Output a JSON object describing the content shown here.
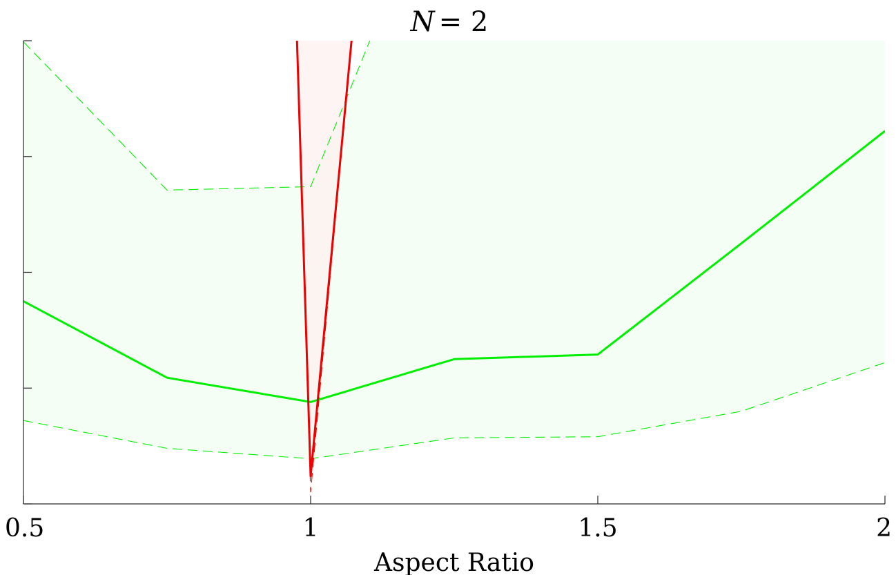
{
  "chart_data": {
    "type": "line",
    "title": "N = 2",
    "title_var": "N",
    "title_eq": "= 2",
    "xlabel": "Aspect Ratio",
    "ylabel": "",
    "xlim": [
      0.5,
      2
    ],
    "ylim": [
      0,
      4
    ],
    "x_ticks": [
      0.5,
      1,
      1.5,
      2
    ],
    "x_tick_labels": [
      "0.5",
      "1",
      "1.5",
      "2"
    ],
    "y_ticks": [
      0,
      1,
      2,
      3,
      4
    ],
    "y_tick_labels": [
      "",
      "",
      "",
      "",
      ""
    ],
    "grid": false,
    "legend": "none",
    "series": [
      {
        "color": "#00ee00",
        "band_fill": "#f0fdf0",
        "x": [
          0.5,
          0.75,
          1.0,
          1.25,
          1.5,
          1.75,
          2.0
        ],
        "mean": [
          1.75,
          1.09,
          0.88,
          1.25,
          1.29,
          2.25,
          3.22
        ],
        "upper": [
          3.99,
          2.71,
          2.74,
          5.8,
          6.5,
          7.0,
          7.5
        ],
        "lower": [
          0.72,
          0.48,
          0.39,
          0.57,
          0.58,
          0.8,
          1.22
        ]
      },
      {
        "color": "#ee0000",
        "band_fill": "#fff0f0",
        "x": [
          0.75,
          0.975,
          1.0,
          1.075,
          1.25
        ],
        "mean": [
          12.0,
          4.2,
          0.24,
          4.2,
          12.0
        ],
        "upper": [
          12.0,
          4.2,
          4.2,
          4.2,
          12.0
        ],
        "lower": [
          12.0,
          4.2,
          0.1,
          4.2,
          12.0
        ]
      }
    ]
  }
}
